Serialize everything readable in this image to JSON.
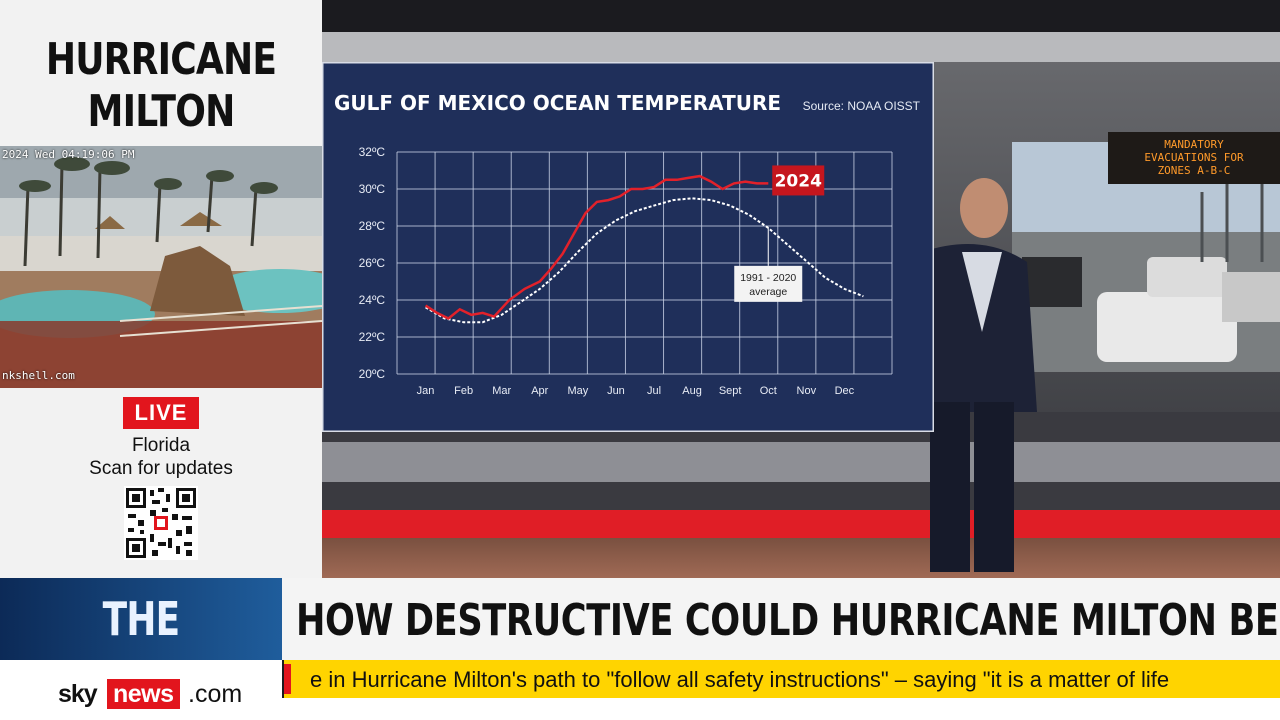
{
  "side_panel": {
    "title_line1": "HURRICANE",
    "title_line2": "MILTON",
    "webcam_timestamp": "2024 Wed 04:19:06 PM",
    "webcam_url": "nkshell.com",
    "live_label": "LIVE",
    "location": "Florida",
    "scan_text": "Scan for updates"
  },
  "studio": {
    "road_sign_lines": [
      "MANDATORY",
      "EVACUATIONS FOR",
      "ZONES A-B-C"
    ]
  },
  "chart_data": {
    "type": "line",
    "title": "GULF OF MEXICO OCEAN TEMPERATURE",
    "source": "Source: NOAA OISST",
    "y_tick_labels": [
      "32ºC",
      "30ºC",
      "28ºC",
      "26ºC",
      "24ºC",
      "22ºC",
      "20ºC"
    ],
    "y_ticks": [
      32,
      30,
      28,
      26,
      24,
      22,
      20
    ],
    "ylim": [
      20,
      32
    ],
    "x_tick_labels": [
      "Jan",
      "Feb",
      "Mar",
      "Apr",
      "May",
      "Jun",
      "Jul",
      "Aug",
      "Sept",
      "Oct",
      "Nov",
      "Dec"
    ],
    "grid": true,
    "colors": {
      "background": "#1f2f5a",
      "grid": "#c9d2e6",
      "series_2024": "#e3212a",
      "series_avg": "#ffffff"
    },
    "series": [
      {
        "name": "2024",
        "x": [
          0,
          0.3,
          0.6,
          0.9,
          1.2,
          1.5,
          1.8,
          2.2,
          2.6,
          3.0,
          3.3,
          3.6,
          3.9,
          4.2,
          4.5,
          4.8,
          5.1,
          5.4,
          5.7,
          6.0,
          6.3,
          6.6,
          6.9,
          7.2,
          7.5,
          7.8,
          8.1,
          8.4,
          8.7,
          9.0
        ],
        "values": [
          23.7,
          23.3,
          23.0,
          23.5,
          23.2,
          23.3,
          23.1,
          24.0,
          24.6,
          25.0,
          25.7,
          26.5,
          27.6,
          28.7,
          29.3,
          29.4,
          29.6,
          30.0,
          30.0,
          30.1,
          30.5,
          30.5,
          30.6,
          30.7,
          30.4,
          30.0,
          30.3,
          30.4,
          30.3,
          30.3
        ]
      },
      {
        "name": "1991 - 2020 average",
        "x": [
          0,
          0.5,
          1.0,
          1.5,
          2.0,
          2.5,
          3.0,
          3.5,
          4.0,
          4.5,
          5.0,
          5.5,
          6.0,
          6.5,
          7.0,
          7.5,
          8.0,
          8.5,
          9.0,
          9.5,
          10.0,
          10.5,
          11.0,
          11.5
        ],
        "values": [
          23.6,
          23.0,
          22.8,
          22.8,
          23.2,
          23.9,
          24.6,
          25.5,
          26.6,
          27.6,
          28.3,
          28.8,
          29.1,
          29.4,
          29.5,
          29.4,
          29.1,
          28.6,
          27.9,
          27.0,
          26.1,
          25.2,
          24.6,
          24.2
        ]
      }
    ],
    "labels": {
      "current_year": "2024",
      "average": "1991 - 2020 average"
    }
  },
  "lower_third": {
    "section_tag": "THE WORLD",
    "headline": "HOW DESTRUCTIVE COULD HURRICANE MILTON BE?",
    "brand_sky": "sky",
    "brand_news": "news",
    "brand_com": ".com",
    "ticker_text": "e in Hurricane Milton's path to \"follow all safety instructions\" – saying \"it is a matter of life"
  }
}
